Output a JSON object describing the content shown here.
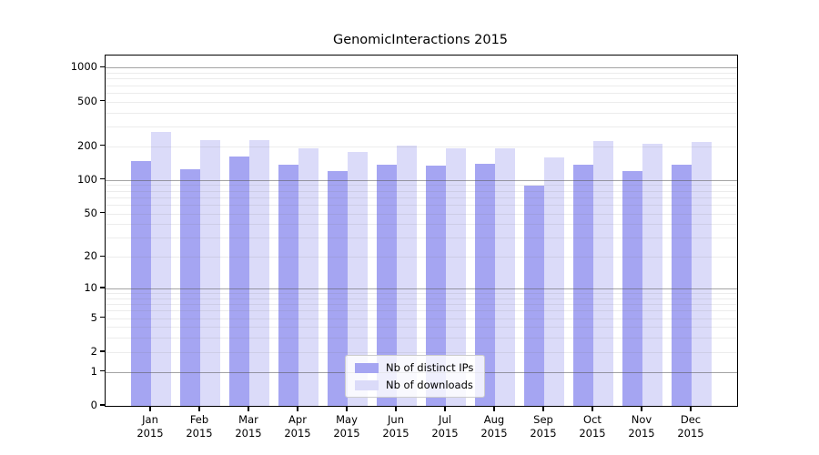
{
  "title": "GenomicInteractions 2015",
  "chart_data": {
    "type": "bar",
    "title": "GenomicInteractions 2015",
    "categories": [
      "Jan 2015",
      "Feb 2015",
      "Mar 2015",
      "Apr 2015",
      "May 2015",
      "Jun 2015",
      "Jul 2015",
      "Aug 2015",
      "Sep 2015",
      "Oct 2015",
      "Nov 2015",
      "Dec 2015"
    ],
    "month_labels": [
      {
        "month": "Jan",
        "year": "2015"
      },
      {
        "month": "Feb",
        "year": "2015"
      },
      {
        "month": "Mar",
        "year": "2015"
      },
      {
        "month": "Apr",
        "year": "2015"
      },
      {
        "month": "May",
        "year": "2015"
      },
      {
        "month": "Jun",
        "year": "2015"
      },
      {
        "month": "Jul",
        "year": "2015"
      },
      {
        "month": "Aug",
        "year": "2015"
      },
      {
        "month": "Sep",
        "year": "2015"
      },
      {
        "month": "Oct",
        "year": "2015"
      },
      {
        "month": "Nov",
        "year": "2015"
      },
      {
        "month": "Dec",
        "year": "2015"
      }
    ],
    "series": [
      {
        "name": "Nb of distinct IPs",
        "color": "#a5a5f2",
        "values": [
          148,
          124,
          161,
          136,
          120,
          137,
          135,
          140,
          89,
          136,
          120,
          137
        ]
      },
      {
        "name": "Nb of downloads",
        "color": "#dbdbf9",
        "values": [
          268,
          228,
          228,
          192,
          178,
          202,
          193,
          190,
          158,
          222,
          210,
          220
        ]
      }
    ],
    "xlabel": "",
    "ylabel": "",
    "y_ticks": [
      0,
      1,
      2,
      5,
      10,
      20,
      50,
      100,
      200,
      500,
      1000
    ],
    "y_scale": "log10(1+x)",
    "y_top_log_value": 3.108,
    "grid": "horizontal, major and minor (log decades), drawn over bars",
    "legend_position": "lower center",
    "legend_frame": true
  }
}
